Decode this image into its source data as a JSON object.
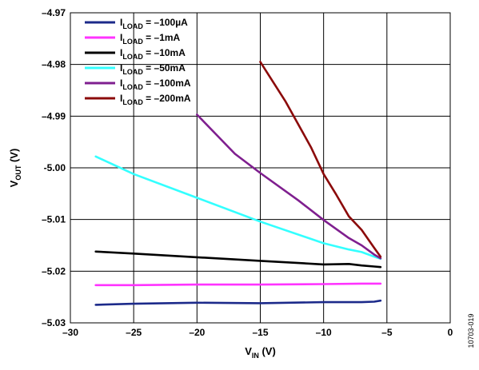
{
  "chart_data": {
    "type": "line",
    "xlabel": {
      "main": "V",
      "sub": "IN",
      "unit": " (V)"
    },
    "ylabel": {
      "main": "V",
      "sub": "OUT",
      "unit": " (V)"
    },
    "xlim": [
      -30,
      0
    ],
    "ylim": [
      -5.03,
      -4.97
    ],
    "x_ticks": [
      -30,
      -25,
      -20,
      -15,
      -10,
      -5,
      0
    ],
    "x_tick_labels": [
      "–30",
      "–25",
      "–20",
      "–15",
      "–10",
      "–5",
      "0"
    ],
    "y_ticks": [
      -4.97,
      -4.98,
      -4.99,
      -5.0,
      -5.01,
      -5.02,
      -5.03
    ],
    "y_tick_labels": [
      "–4.97",
      "–4.98",
      "–4.99",
      "-5.00",
      "–5.01",
      "–5.02",
      "–5.03"
    ],
    "grid": true,
    "legend_position": "top-left",
    "series": [
      {
        "name": {
          "main": "I",
          "sub": "LOAD",
          "value": " = –100µA"
        },
        "color": "#1c2a8a",
        "x": [
          -28,
          -25,
          -20,
          -15,
          -10,
          -7,
          -6,
          -5.5
        ],
        "y": [
          -5.0265,
          -5.0263,
          -5.0261,
          -5.0262,
          -5.026,
          -5.026,
          -5.0259,
          -5.0257
        ]
      },
      {
        "name": {
          "main": "I",
          "sub": "LOAD",
          "value": " = –1mA"
        },
        "color": "#ff33ff",
        "x": [
          -28,
          -25,
          -20,
          -15,
          -10,
          -7,
          -6,
          -5.5
        ],
        "y": [
          -5.0227,
          -5.0227,
          -5.0226,
          -5.0226,
          -5.0225,
          -5.0224,
          -5.0224,
          -5.0224
        ]
      },
      {
        "name": {
          "main": "I",
          "sub": "LOAD",
          "value": " = –10mA"
        },
        "color": "#000000",
        "x": [
          -28,
          -25,
          -20,
          -15,
          -10,
          -8,
          -7,
          -6,
          -5.5
        ],
        "y": [
          -5.0162,
          -5.0166,
          -5.0173,
          -5.018,
          -5.0187,
          -5.0186,
          -5.0189,
          -5.0191,
          -5.0192
        ]
      },
      {
        "name": {
          "main": "I",
          "sub": "LOAD",
          "value": " = –50mA"
        },
        "color": "#33ffff",
        "x": [
          -28,
          -25,
          -20,
          -15,
          -10,
          -8,
          -7,
          -6,
          -5.5
        ],
        "y": [
          -4.9978,
          -5.0012,
          -5.0058,
          -5.0104,
          -5.0146,
          -5.0158,
          -5.0163,
          -5.0172,
          -5.0176
        ]
      },
      {
        "name": {
          "main": "I",
          "sub": "LOAD",
          "value": " = –100mA"
        },
        "color": "#7f1f8f",
        "x": [
          -20,
          -17,
          -15,
          -12,
          -10,
          -8,
          -7,
          -6,
          -5.5
        ],
        "y": [
          -4.9897,
          -4.9973,
          -5.001,
          -5.0063,
          -5.0101,
          -5.0136,
          -5.015,
          -5.0168,
          -5.0175
        ]
      },
      {
        "name": {
          "main": "I",
          "sub": "LOAD",
          "value": " = –200mA"
        },
        "color": "#8b0a0a",
        "x": [
          -15,
          -13,
          -11,
          -10,
          -9,
          -8,
          -7,
          -6,
          -5.5
        ],
        "y": [
          -4.9795,
          -4.9872,
          -4.996,
          -5.0012,
          -5.0052,
          -5.0094,
          -5.012,
          -5.0155,
          -5.0172
        ]
      }
    ]
  },
  "figure_id": "10703-019"
}
